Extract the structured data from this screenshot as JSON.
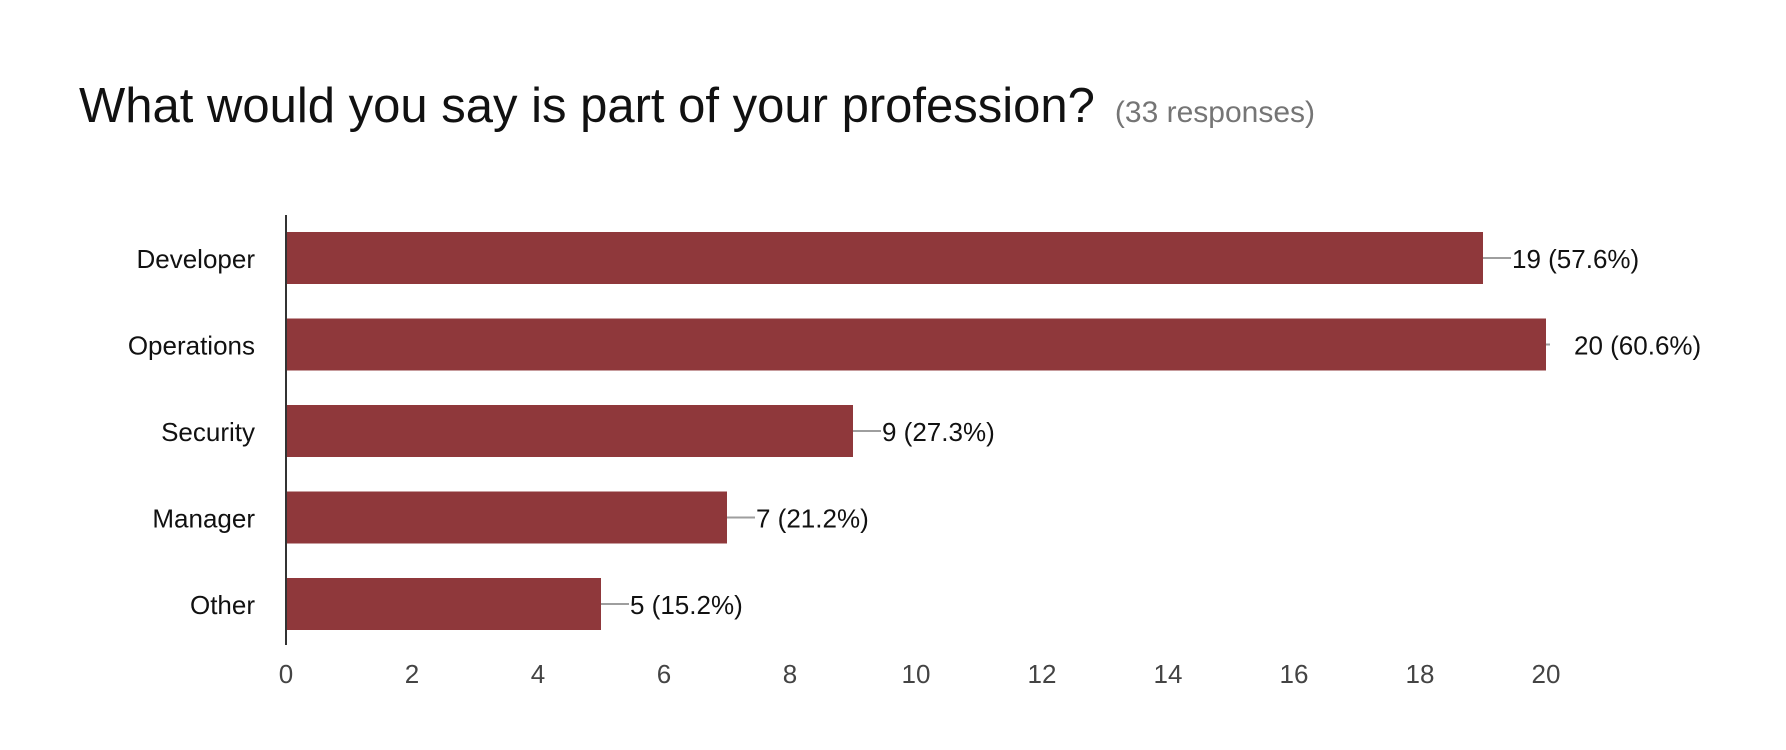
{
  "header": {
    "title": "What would you say is part of your profession?",
    "responses": "(33 responses)"
  },
  "chart_data": {
    "type": "bar",
    "orientation": "horizontal",
    "categories": [
      "Developer",
      "Operations",
      "Security",
      "Manager",
      "Other"
    ],
    "values": [
      19,
      20,
      9,
      7,
      5
    ],
    "data_labels": [
      "19 (57.6%)",
      "20 (60.6%)",
      "9 (27.3%)",
      "7 (21.2%)",
      "5 (15.2%)"
    ],
    "xlim": [
      0,
      20
    ],
    "x_ticks": [
      0,
      2,
      4,
      6,
      8,
      10,
      12,
      14,
      16,
      18,
      20
    ],
    "grid": false,
    "legend": "none",
    "colors": {
      "bar": "#8f383b",
      "axis": "#333333",
      "leader": "#9e9e9e",
      "text": "#111111",
      "tick": "#444444"
    }
  }
}
